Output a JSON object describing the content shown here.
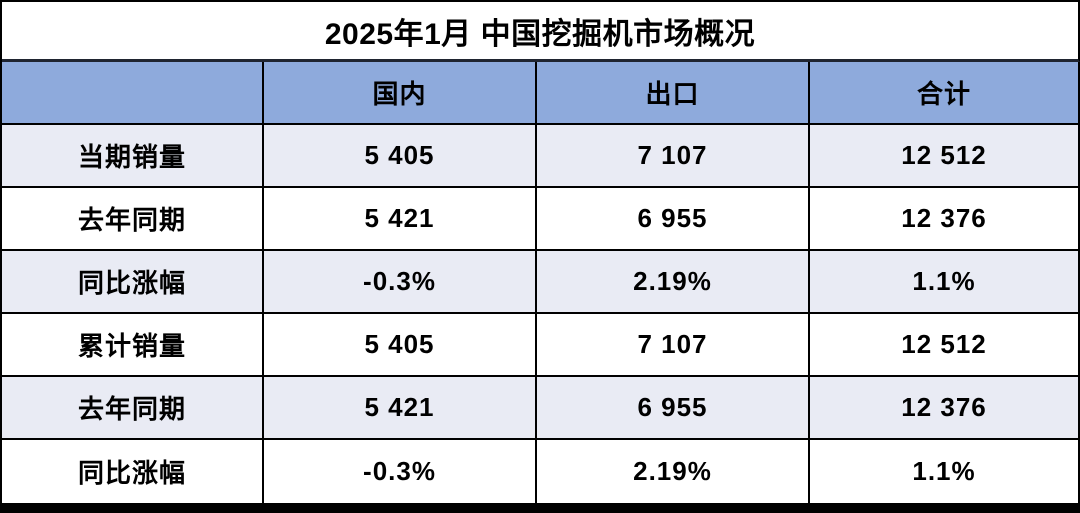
{
  "title": "2025年1月 中国挖掘机市场概况",
  "colors": {
    "header_bg": "#8EAADC",
    "stripe_row_bg": "#E9EBF4",
    "plain_row_bg": "#FFFFFF",
    "border": "#000000",
    "text": "#000000"
  },
  "chart_data": {
    "type": "table",
    "title": "2025年1月 中国挖掘机市场概况",
    "columns": [
      "",
      "国内",
      "出口",
      "合计"
    ],
    "rows": [
      [
        "当期销量",
        "5 405",
        "7 107",
        "12 512"
      ],
      [
        "去年同期",
        "5 421",
        "6 955",
        "12 376"
      ],
      [
        "同比涨幅",
        "-0.3%",
        "2.19%",
        "1.1%"
      ],
      [
        "累计销量",
        "5 405",
        "7 107",
        "12 512"
      ],
      [
        "去年同期",
        "5 421",
        "6 955",
        "12 376"
      ],
      [
        "同比涨幅",
        "-0.3%",
        "2.19%",
        "1.1%"
      ]
    ],
    "notes": {
      "row_semantics": [
        "current-month sales",
        "same period last year",
        "YoY change",
        "cumulative sales",
        "same period last year",
        "YoY change"
      ],
      "layout": "title row spans all columns; header row blue; data rows alternate light/white; thick black bottom border"
    }
  }
}
